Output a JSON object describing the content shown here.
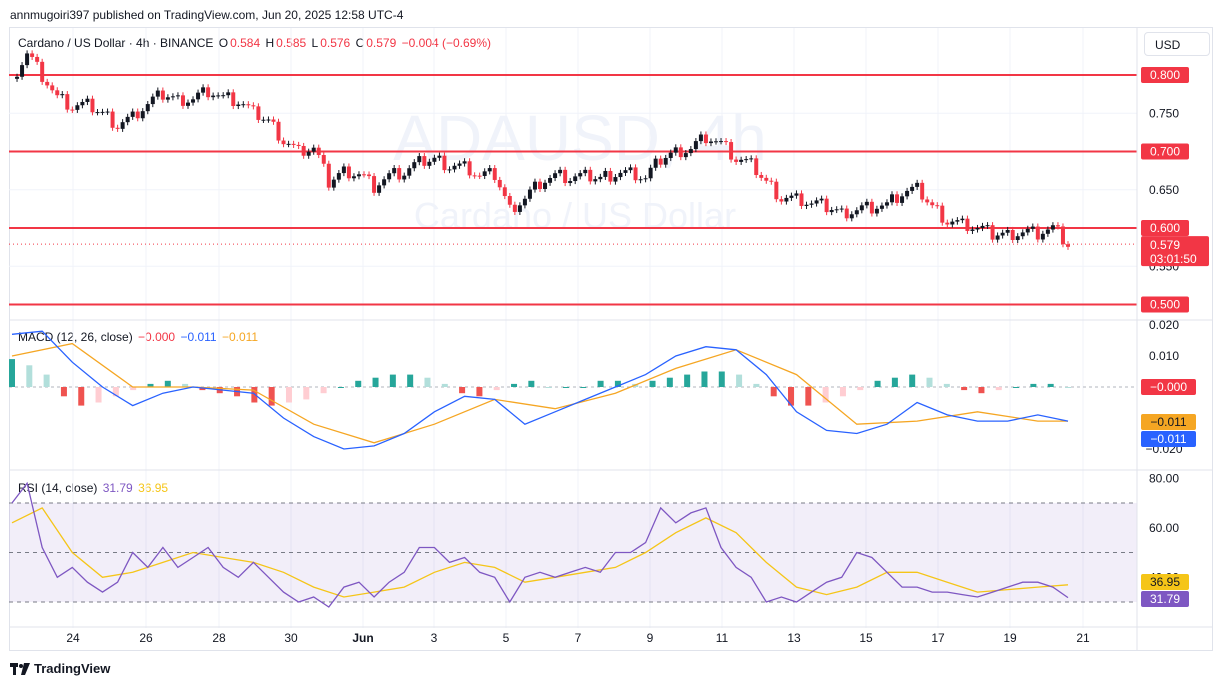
{
  "publisher_line": "annmugoiri397 published on TradingView.com, Jun 20, 2025 12:58 UTC-4",
  "currency_button": "USD",
  "brand": "TradingView",
  "watermark": {
    "symbol": "ADAUSD, 4h",
    "name": "Cardano / US Dollar"
  },
  "colors": {
    "up": "#089981",
    "down": "#f23645",
    "macd": "#2962ff",
    "signal": "#f5a623",
    "rsi": "#7e57c2",
    "rsi_ma": "#f5c518",
    "level_line": "#f23645"
  },
  "price_legend": {
    "symbol": "Cardano / US Dollar · 4h · BINANCE",
    "o_label": "O",
    "o_value": "0.584",
    "h_label": "H",
    "h_value": "0.585",
    "l_label": "L",
    "l_value": "0.576",
    "c_label": "C",
    "c_value": "0.579",
    "change": "−0.004 (−0.69%)"
  },
  "macd_legend": {
    "title": "MACD (12, 26, close)",
    "hist": "−0.000",
    "macd": "−0.011",
    "signal": "−0.011"
  },
  "rsi_legend": {
    "title": "RSI (14, close)",
    "rsi": "31.79",
    "ma": "36.95"
  },
  "chart_data": [
    {
      "type": "candlestick",
      "title": "Cardano / US Dollar · 4h · BINANCE",
      "ylim": [
        0.5,
        0.84
      ],
      "y_ticks": [
        "0.750",
        "0.650",
        "0.550"
      ],
      "x_ticks": [
        "24",
        "26",
        "28",
        "30",
        "Jun",
        "3",
        "5",
        "7",
        "9",
        "11",
        "13",
        "15",
        "17",
        "19",
        "21"
      ],
      "horizontal_levels": [
        {
          "value": 0.8,
          "label": "0.800"
        },
        {
          "value": 0.7,
          "label": "0.700"
        },
        {
          "value": 0.6,
          "label": "0.600"
        },
        {
          "value": 0.5,
          "label": "0.500"
        }
      ],
      "last_price": {
        "value": 0.579,
        "label": "0.579",
        "countdown": "03:01:50"
      },
      "close_path": [
        [
          0,
          0.795
        ],
        [
          1,
          0.83
        ],
        [
          2,
          0.8
        ],
        [
          3,
          0.77
        ],
        [
          4,
          0.758
        ],
        [
          5,
          0.76
        ],
        [
          6,
          0.75
        ],
        [
          7,
          0.735
        ],
        [
          8,
          0.745
        ],
        [
          9,
          0.762
        ],
        [
          10,
          0.775
        ],
        [
          11,
          0.768
        ],
        [
          12,
          0.77
        ],
        [
          13,
          0.78
        ],
        [
          14,
          0.77
        ],
        [
          15,
          0.765
        ],
        [
          16,
          0.75
        ],
        [
          17,
          0.74
        ],
        [
          18,
          0.715
        ],
        [
          19,
          0.7
        ],
        [
          20,
          0.705
        ],
        [
          21,
          0.66
        ],
        [
          22,
          0.675
        ],
        [
          23,
          0.672
        ],
        [
          24,
          0.655
        ],
        [
          25,
          0.668
        ],
        [
          26,
          0.672
        ],
        [
          27,
          0.685
        ],
        [
          28,
          0.69
        ],
        [
          29,
          0.682
        ],
        [
          30,
          0.68
        ],
        [
          31,
          0.668
        ],
        [
          32,
          0.67
        ],
        [
          33,
          0.625
        ],
        [
          34,
          0.64
        ],
        [
          35,
          0.66
        ],
        [
          36,
          0.668
        ],
        [
          37,
          0.665
        ],
        [
          38,
          0.667
        ],
        [
          39,
          0.665
        ],
        [
          40,
          0.672
        ],
        [
          41,
          0.672
        ],
        [
          42,
          0.665
        ],
        [
          43,
          0.69
        ],
        [
          44,
          0.7
        ],
        [
          45,
          0.705
        ],
        [
          46,
          0.72
        ],
        [
          47,
          0.71
        ],
        [
          48,
          0.69
        ],
        [
          49,
          0.682
        ],
        [
          50,
          0.66
        ],
        [
          51,
          0.64
        ],
        [
          52,
          0.638
        ],
        [
          53,
          0.632
        ],
        [
          54,
          0.628
        ],
        [
          55,
          0.62
        ],
        [
          56,
          0.625
        ],
        [
          57,
          0.628
        ],
        [
          58,
          0.63
        ],
        [
          59,
          0.645
        ],
        [
          60,
          0.65
        ],
        [
          61,
          0.628
        ],
        [
          62,
          0.61
        ],
        [
          63,
          0.605
        ],
        [
          64,
          0.6
        ],
        [
          65,
          0.592
        ],
        [
          66,
          0.592
        ],
        [
          67,
          0.596
        ],
        [
          68,
          0.594
        ],
        [
          69,
          0.6
        ],
        [
          70,
          0.579
        ]
      ]
    },
    {
      "type": "bar+line",
      "title": "MACD (12, 26, close)",
      "ylim": [
        -0.022,
        0.022
      ],
      "y_ticks": [
        "0.020",
        "0.010",
        "−0.020"
      ],
      "series": [
        {
          "name": "MACD",
          "values": [
            [
              0,
              0.017
            ],
            [
              2,
              0.018
            ],
            [
              4,
              0.008
            ],
            [
              6,
              0
            ],
            [
              8,
              -0.006
            ],
            [
              10,
              -0.002
            ],
            [
              12,
              0.0
            ],
            [
              14,
              -0.001
            ],
            [
              16,
              -0.002
            ],
            [
              18,
              -0.01
            ],
            [
              20,
              -0.016
            ],
            [
              22,
              -0.02
            ],
            [
              24,
              -0.019
            ],
            [
              26,
              -0.015
            ],
            [
              28,
              -0.008
            ],
            [
              30,
              -0.003
            ],
            [
              32,
              -0.004
            ],
            [
              34,
              -0.012
            ],
            [
              36,
              -0.008
            ],
            [
              38,
              -0.004
            ],
            [
              40,
              0.0
            ],
            [
              42,
              0.004
            ],
            [
              44,
              0.01
            ],
            [
              46,
              0.013
            ],
            [
              48,
              0.012
            ],
            [
              50,
              0.004
            ],
            [
              52,
              -0.008
            ],
            [
              54,
              -0.014
            ],
            [
              56,
              -0.015
            ],
            [
              58,
              -0.012
            ],
            [
              60,
              -0.005
            ],
            [
              62,
              -0.009
            ],
            [
              64,
              -0.011
            ],
            [
              66,
              -0.011
            ],
            [
              68,
              -0.009
            ],
            [
              70,
              -0.011
            ]
          ]
        },
        {
          "name": "Signal",
          "values": [
            [
              0,
              0.01
            ],
            [
              4,
              0.014
            ],
            [
              8,
              0.0
            ],
            [
              12,
              0.0
            ],
            [
              16,
              -0.001
            ],
            [
              20,
              -0.012
            ],
            [
              24,
              -0.018
            ],
            [
              28,
              -0.012
            ],
            [
              32,
              -0.004
            ],
            [
              36,
              -0.007
            ],
            [
              40,
              -0.002
            ],
            [
              44,
              0.006
            ],
            [
              48,
              0.012
            ],
            [
              52,
              0.004
            ],
            [
              56,
              -0.012
            ],
            [
              60,
              -0.011
            ],
            [
              64,
              -0.008
            ],
            [
              68,
              -0.011
            ],
            [
              70,
              -0.011
            ]
          ]
        },
        {
          "name": "Histogram",
          "values": [
            0.009,
            0.007,
            0.004,
            -0.003,
            -0.006,
            -0.005,
            -0.003,
            -0.001,
            0.001,
            0.002,
            0.001,
            -0.001,
            -0.002,
            -0.003,
            -0.005,
            -0.006,
            -0.005,
            -0.004,
            -0.002,
            0.0,
            0.002,
            0.003,
            0.004,
            0.004,
            0.003,
            0.001,
            -0.002,
            -0.003,
            -0.001,
            0.001,
            0.002,
            0.0,
            0.0,
            0.0,
            0.002,
            0.002,
            0.001,
            0.002,
            0.003,
            0.004,
            0.005,
            0.005,
            0.004,
            0.001,
            -0.003,
            -0.006,
            -0.006,
            -0.005,
            -0.003,
            -0.001,
            0.002,
            0.003,
            0.004,
            0.003,
            0.001,
            -0.001,
            -0.002,
            -0.001,
            0.0,
            0.001,
            0.001,
            0.0
          ]
        }
      ],
      "value_labels": [
        "−0.000",
        "−0.011",
        "−0.011"
      ]
    },
    {
      "type": "line",
      "title": "RSI (14, close)",
      "ylim": [
        20,
        80
      ],
      "y_ticks": [
        "80.00",
        "60.00",
        "40.00"
      ],
      "bands": [
        70,
        50,
        30
      ],
      "series": [
        {
          "name": "RSI",
          "values": [
            [
              0,
              70
            ],
            [
              1,
              78
            ],
            [
              2,
              52
            ],
            [
              3,
              40
            ],
            [
              4,
              44
            ],
            [
              5,
              38
            ],
            [
              6,
              34
            ],
            [
              7,
              38
            ],
            [
              8,
              50
            ],
            [
              9,
              44
            ],
            [
              10,
              52
            ],
            [
              11,
              44
            ],
            [
              12,
              48
            ],
            [
              13,
              52
            ],
            [
              14,
              44
            ],
            [
              15,
              40
            ],
            [
              16,
              46
            ],
            [
              17,
              40
            ],
            [
              18,
              34
            ],
            [
              19,
              30
            ],
            [
              20,
              32
            ],
            [
              21,
              28
            ],
            [
              22,
              36
            ],
            [
              23,
              38
            ],
            [
              24,
              32
            ],
            [
              25,
              38
            ],
            [
              26,
              42
            ],
            [
              27,
              52
            ],
            [
              28,
              52
            ],
            [
              29,
              46
            ],
            [
              30,
              48
            ],
            [
              31,
              42
            ],
            [
              32,
              40
            ],
            [
              33,
              30
            ],
            [
              34,
              40
            ],
            [
              35,
              42
            ],
            [
              36,
              40
            ],
            [
              37,
              42
            ],
            [
              38,
              44
            ],
            [
              39,
              42
            ],
            [
              40,
              50
            ],
            [
              41,
              50
            ],
            [
              42,
              54
            ],
            [
              43,
              68
            ],
            [
              44,
              62
            ],
            [
              45,
              66
            ],
            [
              46,
              68
            ],
            [
              47,
              52
            ],
            [
              48,
              44
            ],
            [
              49,
              40
            ],
            [
              50,
              30
            ],
            [
              51,
              32
            ],
            [
              52,
              30
            ],
            [
              53,
              34
            ],
            [
              54,
              38
            ],
            [
              55,
              40
            ],
            [
              56,
              50
            ],
            [
              57,
              48
            ],
            [
              58,
              42
            ],
            [
              59,
              36
            ],
            [
              60,
              36
            ],
            [
              61,
              34
            ],
            [
              62,
              34
            ],
            [
              63,
              33
            ],
            [
              64,
              32
            ],
            [
              65,
              34
            ],
            [
              66,
              36
            ],
            [
              67,
              38
            ],
            [
              68,
              38
            ],
            [
              69,
              36
            ],
            [
              70,
              31.79
            ]
          ]
        },
        {
          "name": "RSI MA",
          "values": [
            [
              0,
              62
            ],
            [
              2,
              68
            ],
            [
              4,
              50
            ],
            [
              6,
              40
            ],
            [
              8,
              42
            ],
            [
              10,
              46
            ],
            [
              12,
              50
            ],
            [
              14,
              48
            ],
            [
              16,
              46
            ],
            [
              18,
              42
            ],
            [
              20,
              36
            ],
            [
              22,
              32
            ],
            [
              24,
              34
            ],
            [
              26,
              36
            ],
            [
              28,
              42
            ],
            [
              30,
              46
            ],
            [
              32,
              44
            ],
            [
              34,
              38
            ],
            [
              36,
              40
            ],
            [
              38,
              42
            ],
            [
              40,
              44
            ],
            [
              42,
              50
            ],
            [
              44,
              58
            ],
            [
              46,
              64
            ],
            [
              48,
              58
            ],
            [
              50,
              46
            ],
            [
              52,
              36
            ],
            [
              54,
              33
            ],
            [
              56,
              36
            ],
            [
              58,
              42
            ],
            [
              60,
              42
            ],
            [
              62,
              38
            ],
            [
              64,
              34
            ],
            [
              66,
              35
            ],
            [
              68,
              36
            ],
            [
              70,
              36.95
            ]
          ]
        }
      ],
      "value_labels": [
        "36.95",
        "31.79"
      ]
    }
  ]
}
